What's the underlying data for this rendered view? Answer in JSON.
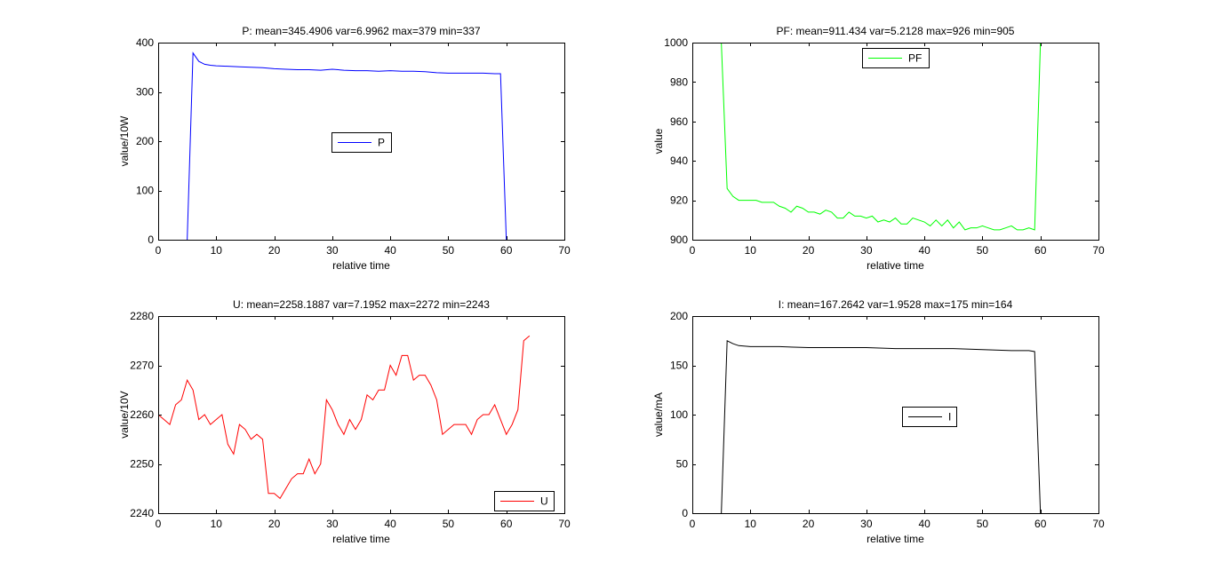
{
  "chart_data": [
    {
      "type": "line",
      "title": "P: mean=345.4906 var=6.9962 max=379 min=337",
      "xlabel": "relative time",
      "ylabel": "value/10W",
      "xlim": [
        0,
        70
      ],
      "ylim": [
        0,
        400
      ],
      "xticks": [
        0,
        10,
        20,
        30,
        40,
        50,
        60,
        70
      ],
      "yticks": [
        0,
        100,
        200,
        300,
        400
      ],
      "grid": false,
      "legend_position": "center",
      "series": [
        {
          "name": "P",
          "color": "#0000ff",
          "x": [
            5,
            6,
            7,
            8,
            9,
            10,
            12,
            14,
            16,
            18,
            20,
            22,
            24,
            26,
            28,
            30,
            32,
            34,
            36,
            38,
            40,
            42,
            44,
            46,
            48,
            50,
            52,
            54,
            56,
            58,
            59,
            60
          ],
          "y": [
            0,
            379,
            362,
            356,
            354,
            353,
            352,
            351,
            350,
            349,
            347,
            346,
            345,
            345,
            344,
            346,
            344,
            343,
            343,
            342,
            343,
            342,
            342,
            341,
            339,
            338,
            338,
            338,
            338,
            337,
            337,
            0
          ]
        }
      ]
    },
    {
      "type": "line",
      "title": "PF: mean=911.434 var=5.2128 max=926 min=905",
      "xlabel": "relative time",
      "ylabel": "value",
      "xlim": [
        0,
        70
      ],
      "ylim": [
        900,
        1000
      ],
      "xticks": [
        0,
        10,
        20,
        30,
        40,
        50,
        60,
        70
      ],
      "yticks": [
        900,
        920,
        940,
        960,
        980,
        1000
      ],
      "grid": false,
      "legend_position": "top-center",
      "series": [
        {
          "name": "PF",
          "color": "#00ff00",
          "x": [
            5,
            6,
            7,
            8,
            9,
            10,
            11,
            12,
            13,
            14,
            15,
            16,
            17,
            18,
            19,
            20,
            21,
            22,
            23,
            24,
            25,
            26,
            27,
            28,
            29,
            30,
            31,
            32,
            33,
            34,
            35,
            36,
            37,
            38,
            39,
            40,
            41,
            42,
            43,
            44,
            45,
            46,
            47,
            48,
            49,
            50,
            51,
            52,
            53,
            54,
            55,
            56,
            57,
            58,
            59,
            60
          ],
          "y": [
            1000,
            926,
            922,
            920,
            920,
            920,
            920,
            919,
            919,
            919,
            917,
            916,
            914,
            917,
            916,
            914,
            914,
            913,
            915,
            914,
            911,
            911,
            914,
            912,
            912,
            911,
            912,
            909,
            910,
            909,
            911,
            908,
            908,
            911,
            910,
            909,
            907,
            910,
            907,
            910,
            906,
            909,
            905,
            906,
            906,
            907,
            906,
            905,
            905,
            906,
            907,
            905,
            905,
            906,
            905,
            1000
          ]
        }
      ]
    },
    {
      "type": "line",
      "title": "U: mean=2258.1887 var=7.1952 max=2272 min=2243",
      "xlabel": "relative time",
      "ylabel": "value/10V",
      "xlim": [
        0,
        70
      ],
      "ylim": [
        2240,
        2280
      ],
      "xticks": [
        0,
        10,
        20,
        30,
        40,
        50,
        60,
        70
      ],
      "yticks": [
        2240,
        2250,
        2260,
        2270,
        2280
      ],
      "grid": false,
      "legend_position": "bottom-right",
      "series": [
        {
          "name": "U",
          "color": "#ff0000",
          "x": [
            0,
            1,
            2,
            3,
            4,
            5,
            6,
            7,
            8,
            9,
            10,
            11,
            12,
            13,
            14,
            15,
            16,
            17,
            18,
            19,
            20,
            21,
            22,
            23,
            24,
            25,
            26,
            27,
            28,
            29,
            30,
            31,
            32,
            33,
            34,
            35,
            36,
            37,
            38,
            39,
            40,
            41,
            42,
            43,
            44,
            45,
            46,
            47,
            48,
            49,
            50,
            51,
            52,
            53,
            54,
            55,
            56,
            57,
            58,
            59,
            60,
            61,
            62,
            63,
            64
          ],
          "y": [
            2260,
            2259,
            2258,
            2262,
            2263,
            2267,
            2265,
            2259,
            2260,
            2258,
            2259,
            2260,
            2254,
            2252,
            2258,
            2257,
            2255,
            2256,
            2255,
            2244,
            2244,
            2243,
            2245,
            2247,
            2248,
            2248,
            2251,
            2248,
            2250,
            2263,
            2261,
            2258,
            2256,
            2259,
            2257,
            2259,
            2264,
            2263,
            2265,
            2265,
            2270,
            2268,
            2272,
            2272,
            2267,
            2268,
            2268,
            2266,
            2263,
            2256,
            2257,
            2258,
            2258,
            2258,
            2256,
            2259,
            2260,
            2260,
            2262,
            2259,
            2256,
            2258,
            2261,
            2275,
            2276
          ]
        }
      ]
    },
    {
      "type": "line",
      "title": "I: mean=167.2642 var=1.9528 max=175 min=164",
      "xlabel": "relative time",
      "ylabel": "value/mA",
      "xlim": [
        0,
        70
      ],
      "ylim": [
        0,
        200
      ],
      "xticks": [
        0,
        10,
        20,
        30,
        40,
        50,
        60,
        70
      ],
      "yticks": [
        0,
        50,
        100,
        150,
        200
      ],
      "grid": false,
      "legend_position": "center-right",
      "series": [
        {
          "name": "I",
          "color": "#000000",
          "x": [
            5,
            6,
            7,
            8,
            10,
            15,
            20,
            25,
            30,
            35,
            40,
            45,
            50,
            55,
            58,
            59,
            60
          ],
          "y": [
            0,
            175,
            172,
            170,
            169,
            169,
            168,
            168,
            168,
            167,
            167,
            167,
            166,
            165,
            165,
            164,
            0
          ]
        }
      ]
    }
  ]
}
